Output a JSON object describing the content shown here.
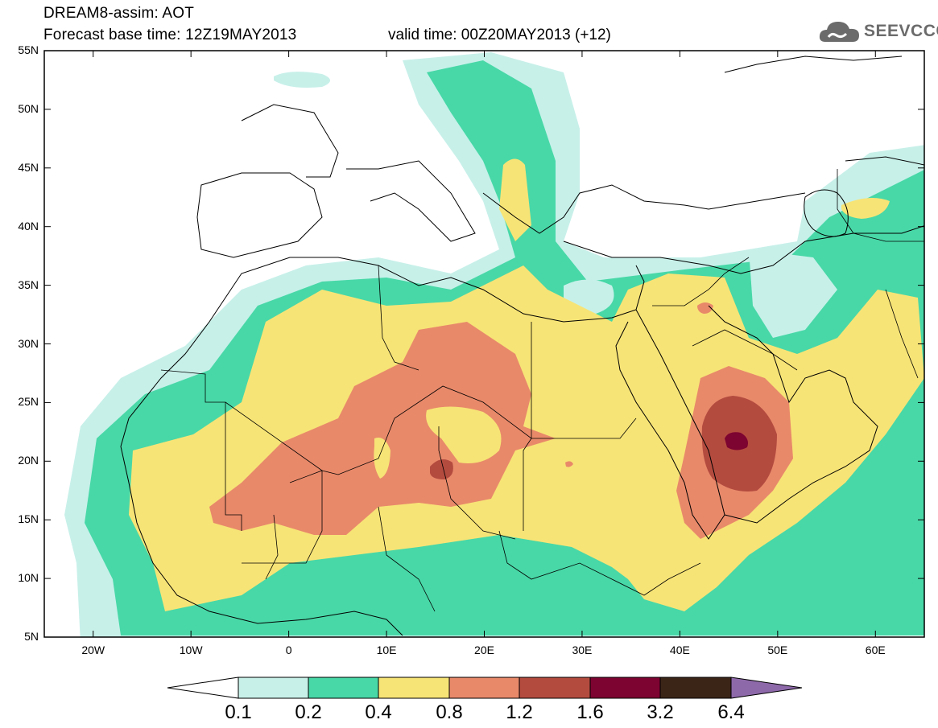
{
  "header": {
    "model_line": "DREAM8-assim: AOT",
    "base_time": "Forecast base time: 12Z19MAY2013",
    "valid_time": "valid time: 00Z20MAY2013 (+12)",
    "logo_text": "SEEVCCC",
    "logo_icon": "cloud-icon"
  },
  "map": {
    "latitude_labels": [
      "55N",
      "50N",
      "45N",
      "40N",
      "35N",
      "30N",
      "25N",
      "20N",
      "15N",
      "10N",
      "5N"
    ],
    "longitude_labels": [
      "20W",
      "10W",
      "0",
      "10E",
      "20E",
      "30E",
      "40E",
      "50E",
      "60E"
    ],
    "lon_range": [
      -25,
      65
    ],
    "lat_range": [
      5,
      55
    ]
  },
  "colorbar": {
    "labels": [
      "0.1",
      "0.2",
      "0.4",
      "0.8",
      "1.2",
      "1.6",
      "3.2",
      "6.4"
    ],
    "colors": [
      "#ffffff",
      "#c7f0e9",
      "#48d8a7",
      "#f7e476",
      "#e8896a",
      "#b44b3f",
      "#7d0330",
      "#3b2517",
      "#8e69aa"
    ]
  }
}
